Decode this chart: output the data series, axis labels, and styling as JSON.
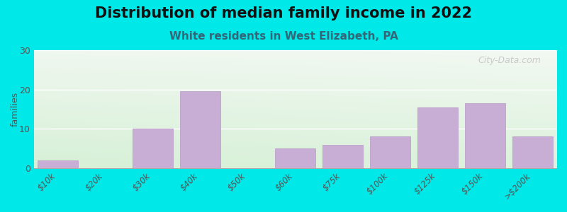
{
  "title": "Distribution of median family income in 2022",
  "subtitle": "White residents in West Elizabeth, PA",
  "categories": [
    "$10k",
    "$20k",
    "$30k",
    "$40k",
    "$50k",
    "$60k",
    "$75k",
    "$100k",
    "$125k",
    "$150k",
    ">$200k"
  ],
  "values": [
    2,
    0,
    10,
    19.5,
    0,
    5,
    6,
    8,
    15.5,
    16.5,
    8
  ],
  "bar_color": "#c8aed4",
  "bar_edge_color": "#b899c8",
  "background_color": "#00e8e8",
  "plot_bg_topleft": "#d8eedd",
  "plot_bg_topright": "#f0f4ee",
  "plot_bg_bottom": "#e8f5e0",
  "title_fontsize": 15,
  "subtitle_fontsize": 11,
  "ylabel": "families",
  "ylim": [
    0,
    30
  ],
  "yticks": [
    0,
    10,
    20,
    30
  ],
  "watermark": "City-Data.com"
}
